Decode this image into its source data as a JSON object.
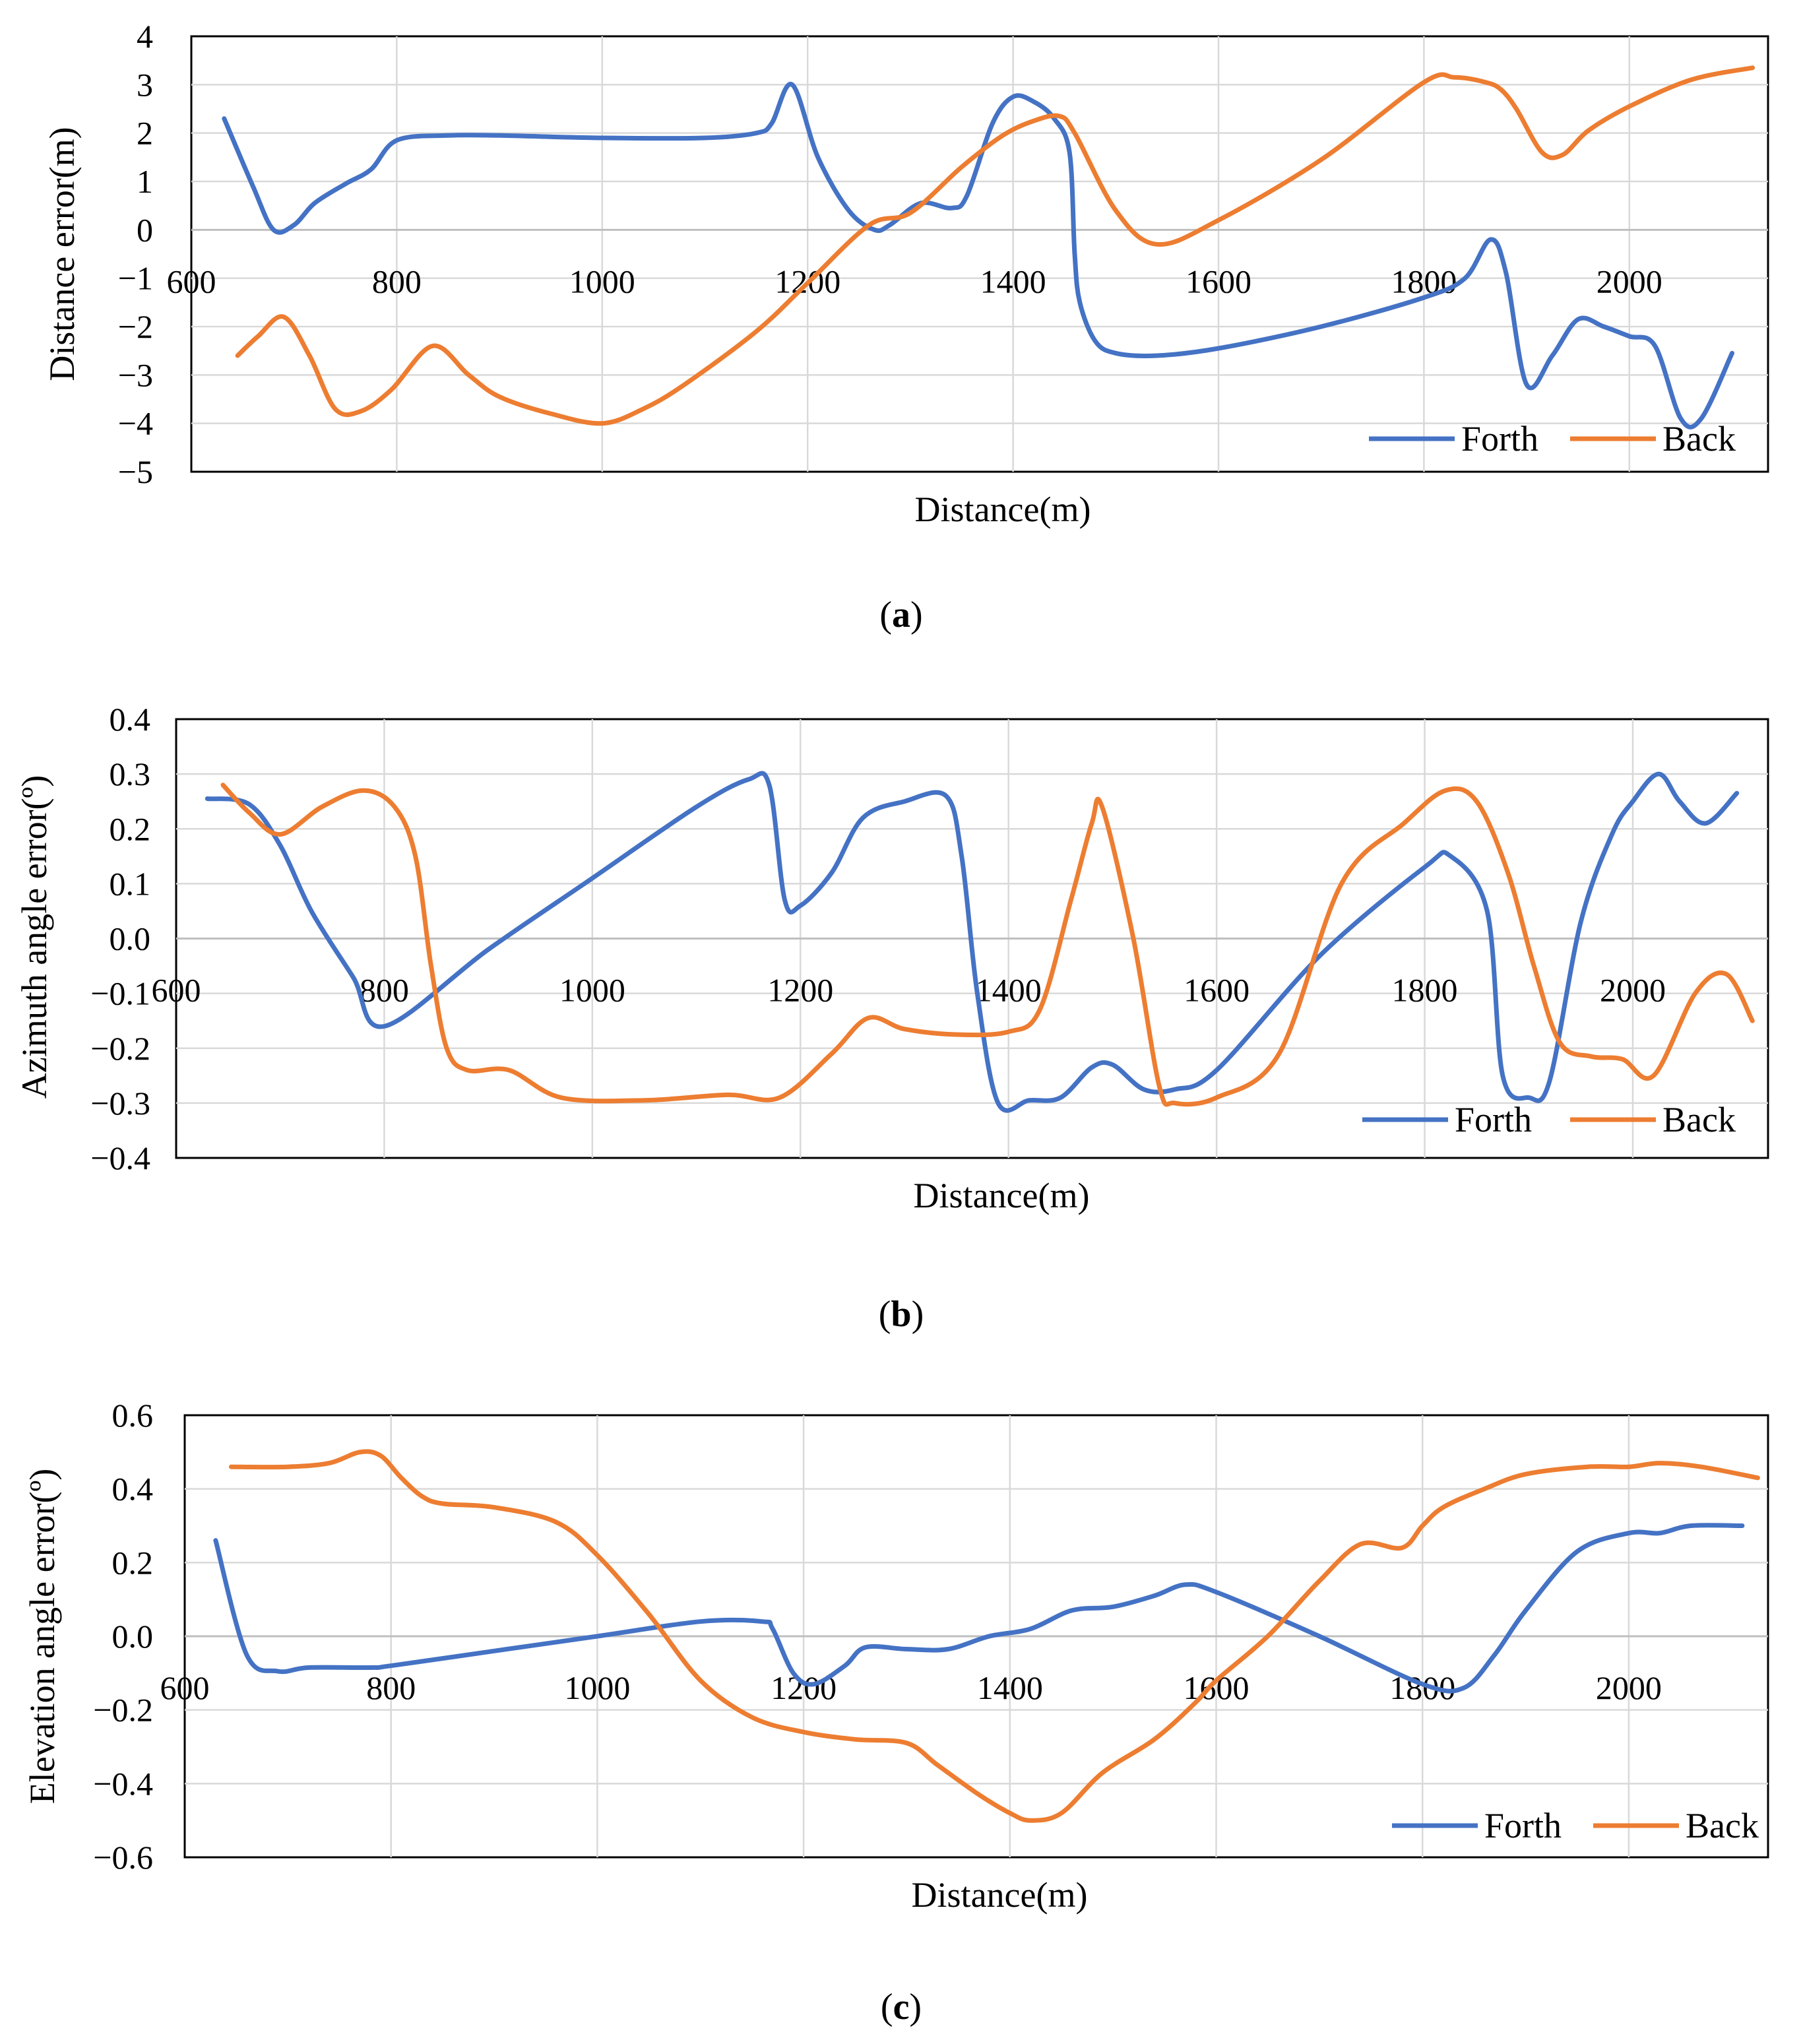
{
  "figure": {
    "panels": [
      {
        "id": "a",
        "label_open": "(",
        "label_letter": "a",
        "label_close": ")"
      },
      {
        "id": "b",
        "label_open": "(",
        "label_letter": "b",
        "label_close": ")"
      },
      {
        "id": "c",
        "label_open": "(",
        "label_letter": "c",
        "label_close": ")"
      }
    ]
  },
  "chart_data": [
    {
      "type": "line",
      "title": "",
      "xlabel": "Distance(m)",
      "ylabel": "Distance error(m)",
      "xlim": [
        600,
        2135
      ],
      "ylim": [
        -5,
        4
      ],
      "xticks": [
        600,
        800,
        1000,
        1200,
        1400,
        1600,
        1800,
        2000
      ],
      "xtick_labels": [
        "600",
        "800",
        "1000",
        "1200",
        "1400",
        "1600",
        "1800",
        "2000"
      ],
      "yticks": [
        -5,
        -4,
        -3,
        -2,
        -1,
        0,
        1,
        2,
        3,
        4
      ],
      "ytick_labels": [
        "−5",
        "−4",
        "−3",
        "−2",
        "−1",
        "0",
        "1",
        "2",
        "3",
        "4"
      ],
      "grid": true,
      "legend_position": "bottom-right",
      "series": [
        {
          "name": "Forth",
          "color": "#4472C4",
          "x": [
            632,
            660,
            680,
            700,
            720,
            750,
            775,
            800,
            850,
            900,
            1000,
            1100,
            1150,
            1165,
            1185,
            1210,
            1240,
            1265,
            1280,
            1310,
            1340,
            1355,
            1380,
            1400,
            1420,
            1440,
            1455,
            1460,
            1465,
            1480,
            1500,
            1540,
            1600,
            1700,
            1800,
            1840,
            1865,
            1880,
            1900,
            1925,
            1950,
            1975,
            2000,
            2025,
            2050,
            2070,
            2100
          ],
          "y": [
            2.3,
            0.9,
            0.0,
            0.1,
            0.55,
            0.95,
            1.25,
            1.85,
            1.95,
            1.95,
            1.9,
            1.9,
            2.0,
            2.2,
            3.0,
            1.5,
            0.4,
            0.0,
            0.1,
            0.55,
            0.45,
            0.7,
            2.2,
            2.75,
            2.65,
            2.3,
            1.6,
            -0.5,
            -1.5,
            -2.3,
            -2.55,
            -2.6,
            -2.45,
            -2.0,
            -1.4,
            -1.0,
            -0.2,
            -0.9,
            -3.2,
            -2.6,
            -1.85,
            -2.0,
            -2.2,
            -2.4,
            -3.9,
            -3.9,
            -2.55
          ]
        },
        {
          "name": "Back",
          "color": "#ED7D31",
          "x": [
            645,
            665,
            690,
            715,
            740,
            765,
            795,
            835,
            870,
            900,
            950,
            1000,
            1040,
            1080,
            1150,
            1200,
            1260,
            1300,
            1350,
            1390,
            1420,
            1445,
            1460,
            1500,
            1540,
            1600,
            1700,
            1800,
            1830,
            1860,
            1875,
            1890,
            1915,
            1935,
            1960,
            2000,
            2060,
            2120
          ],
          "y": [
            -2.6,
            -2.2,
            -1.8,
            -2.6,
            -3.7,
            -3.75,
            -3.3,
            -2.4,
            -3.0,
            -3.45,
            -3.8,
            -4.0,
            -3.7,
            -3.2,
            -2.1,
            -1.1,
            0.1,
            0.35,
            1.3,
            1.95,
            2.25,
            2.35,
            2.0,
            0.4,
            -0.3,
            0.2,
            1.45,
            3.05,
            3.15,
            3.05,
            2.9,
            2.5,
            1.6,
            1.55,
            2.05,
            2.55,
            3.1,
            3.35
          ]
        }
      ]
    },
    {
      "type": "line",
      "title": "",
      "xlabel": "Distance(m)",
      "ylabel": "Azimuth angle error(º)",
      "xlim": [
        600,
        2130
      ],
      "ylim": [
        -0.4,
        0.4
      ],
      "xticks": [
        600,
        800,
        1000,
        1200,
        1400,
        1600,
        1800,
        2000
      ],
      "xtick_labels": [
        "600",
        "800",
        "1000",
        "1200",
        "1400",
        "1600",
        "1800",
        "2000"
      ],
      "yticks": [
        -0.4,
        -0.3,
        -0.2,
        -0.1,
        0.0,
        0.1,
        0.2,
        0.3,
        0.4
      ],
      "ytick_labels": [
        "−0.4",
        "−0.3",
        "−0.2",
        "−0.1",
        "0.0",
        "0.1",
        "0.2",
        "0.3",
        "0.4"
      ],
      "grid": true,
      "legend_position": "bottom-right",
      "series": [
        {
          "name": "Forth",
          "color": "#4472C4",
          "x": [
            630,
            670,
            700,
            730,
            770,
            800,
            900,
            1000,
            1100,
            1150,
            1170,
            1185,
            1200,
            1230,
            1260,
            1300,
            1340,
            1355,
            1370,
            1390,
            1420,
            1450,
            1480,
            1500,
            1530,
            1560,
            1600,
            1700,
            1800,
            1825,
            1860,
            1875,
            1900,
            1920,
            1950,
            1980,
            2000,
            2025,
            2045,
            2070,
            2100
          ],
          "y": [
            0.255,
            0.245,
            0.17,
            0.05,
            -0.07,
            -0.16,
            -0.02,
            0.11,
            0.24,
            0.29,
            0.28,
            0.07,
            0.06,
            0.12,
            0.22,
            0.25,
            0.26,
            0.15,
            -0.1,
            -0.3,
            -0.295,
            -0.29,
            -0.235,
            -0.23,
            -0.275,
            -0.275,
            -0.24,
            -0.03,
            0.13,
            0.15,
            0.05,
            -0.25,
            -0.29,
            -0.26,
            0.03,
            0.19,
            0.25,
            0.3,
            0.25,
            0.21,
            0.265
          ]
        },
        {
          "name": "Back",
          "color": "#ED7D31",
          "x": [
            645,
            670,
            700,
            740,
            780,
            810,
            830,
            845,
            860,
            880,
            920,
            970,
            1050,
            1130,
            1180,
            1230,
            1265,
            1300,
            1350,
            1400,
            1430,
            1460,
            1480,
            1490,
            1520,
            1545,
            1560,
            1600,
            1660,
            1720,
            1780,
            1820,
            1850,
            1880,
            1905,
            1930,
            1960,
            1990,
            2020,
            2060,
            2090,
            2115
          ],
          "y": [
            0.28,
            0.23,
            0.19,
            0.24,
            0.27,
            0.24,
            0.15,
            -0.05,
            -0.2,
            -0.24,
            -0.24,
            -0.29,
            -0.295,
            -0.285,
            -0.29,
            -0.21,
            -0.145,
            -0.165,
            -0.175,
            -0.17,
            -0.13,
            0.07,
            0.21,
            0.24,
            0.0,
            -0.27,
            -0.3,
            -0.29,
            -0.21,
            0.1,
            0.21,
            0.27,
            0.25,
            0.12,
            -0.05,
            -0.19,
            -0.215,
            -0.22,
            -0.25,
            -0.1,
            -0.065,
            -0.15
          ]
        }
      ]
    },
    {
      "type": "line",
      "title": "",
      "xlabel": "Distance(m)",
      "ylabel": "Elevation angle error(º)",
      "xlim": [
        600,
        2135
      ],
      "ylim": [
        -0.6,
        0.6
      ],
      "xticks": [
        600,
        800,
        1000,
        1200,
        1400,
        1600,
        1800,
        2000
      ],
      "xtick_labels": [
        "600",
        "800",
        "1000",
        "1200",
        "1400",
        "1600",
        "1800",
        "2000"
      ],
      "yticks": [
        -0.6,
        -0.4,
        -0.2,
        0.0,
        0.2,
        0.4,
        0.6
      ],
      "ytick_labels": [
        "−0.6",
        "−0.4",
        "−0.2",
        "0.0",
        "0.2",
        "0.4",
        "0.6"
      ],
      "grid": true,
      "legend_position": "bottom-right",
      "series": [
        {
          "name": "Forth",
          "color": "#4472C4",
          "x": [
            630,
            660,
            690,
            720,
            780,
            800,
            900,
            1000,
            1100,
            1160,
            1170,
            1190,
            1210,
            1240,
            1260,
            1300,
            1340,
            1380,
            1420,
            1460,
            1500,
            1540,
            1570,
            1600,
            1700,
            1800,
            1840,
            1870,
            1900,
            1950,
            2000,
            2030,
            2060,
            2110
          ],
          "y": [
            0.26,
            -0.05,
            -0.095,
            -0.085,
            -0.085,
            -0.08,
            -0.04,
            0.0,
            0.04,
            0.04,
            0.02,
            -0.1,
            -0.13,
            -0.08,
            -0.03,
            -0.035,
            -0.035,
            0.0,
            0.02,
            0.07,
            0.08,
            0.11,
            0.14,
            0.12,
            0.0,
            -0.13,
            -0.14,
            -0.05,
            0.07,
            0.23,
            0.28,
            0.28,
            0.3,
            0.3
          ]
        },
        {
          "name": "Back",
          "color": "#ED7D31",
          "x": [
            645,
            700,
            740,
            770,
            790,
            810,
            830,
            850,
            900,
            960,
            1000,
            1050,
            1100,
            1150,
            1200,
            1250,
            1300,
            1330,
            1370,
            1400,
            1420,
            1450,
            1490,
            1540,
            1580,
            1600,
            1650,
            1700,
            1740,
            1780,
            1800,
            1820,
            1860,
            1900,
            1960,
            2000,
            2030,
            2070,
            2125
          ],
          "y": [
            0.46,
            0.46,
            0.47,
            0.5,
            0.49,
            0.43,
            0.38,
            0.36,
            0.35,
            0.31,
            0.22,
            0.06,
            -0.12,
            -0.22,
            -0.26,
            -0.28,
            -0.29,
            -0.35,
            -0.43,
            -0.48,
            -0.5,
            -0.48,
            -0.37,
            -0.28,
            -0.18,
            -0.12,
            0.0,
            0.15,
            0.25,
            0.24,
            0.3,
            0.35,
            0.4,
            0.44,
            0.46,
            0.46,
            0.47,
            0.46,
            0.43
          ]
        }
      ]
    }
  ]
}
